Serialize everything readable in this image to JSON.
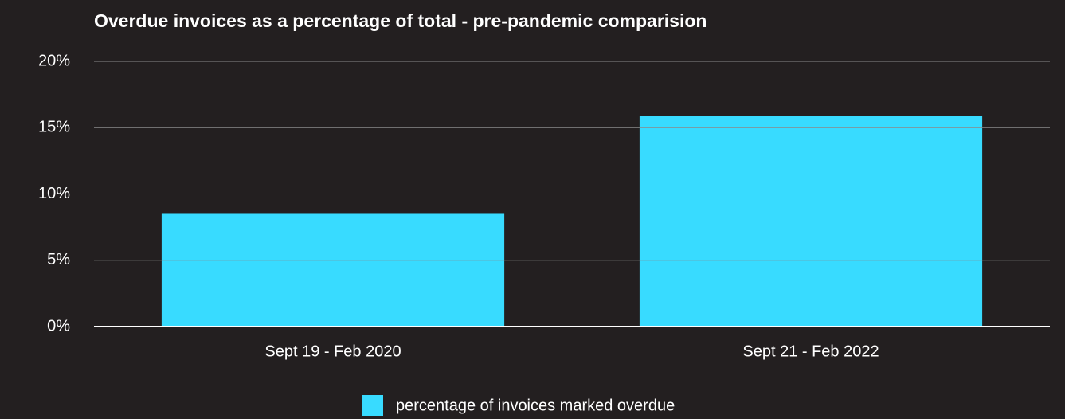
{
  "chart_data": {
    "type": "bar",
    "title": "Overdue invoices as a percentage of total - pre-pandemic comparision",
    "categories": [
      "Sept 19 - Feb 2020",
      "Sept 21 - Feb 2022"
    ],
    "series": [
      {
        "name": "percentage of invoices marked overdue",
        "color": "#38dbff",
        "values": [
          8.5,
          15.9
        ]
      }
    ],
    "ylim": [
      0,
      20
    ],
    "yticks": [
      {
        "value": 0,
        "label": "0%"
      },
      {
        "value": 5,
        "label": "5%"
      },
      {
        "value": 10,
        "label": "10%"
      },
      {
        "value": 15,
        "label": "15%"
      },
      {
        "value": 20,
        "label": "20%"
      }
    ],
    "grid": true,
    "legend": "bottom"
  }
}
